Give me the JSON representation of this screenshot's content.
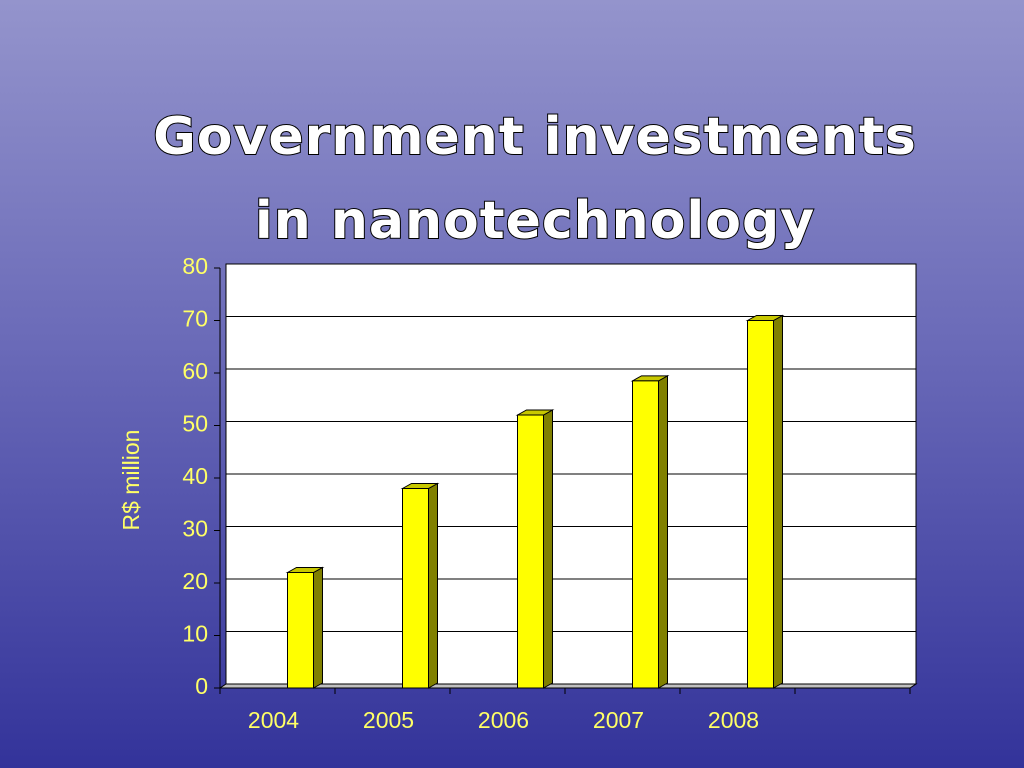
{
  "chart_data": {
    "type": "bar3d",
    "title": "Government investments in nanotechnology",
    "y_label": "R$ million",
    "categories": [
      "2004",
      "2005",
      "2006",
      "2007",
      "2008",
      null
    ],
    "values": [
      22,
      38,
      52,
      58.5,
      70,
      null
    ],
    "color": "#ffff00",
    "ylim": [
      0,
      80
    ],
    "yticks": [
      0,
      10,
      20,
      30,
      40,
      50,
      60,
      70,
      80
    ],
    "grid": true
  }
}
